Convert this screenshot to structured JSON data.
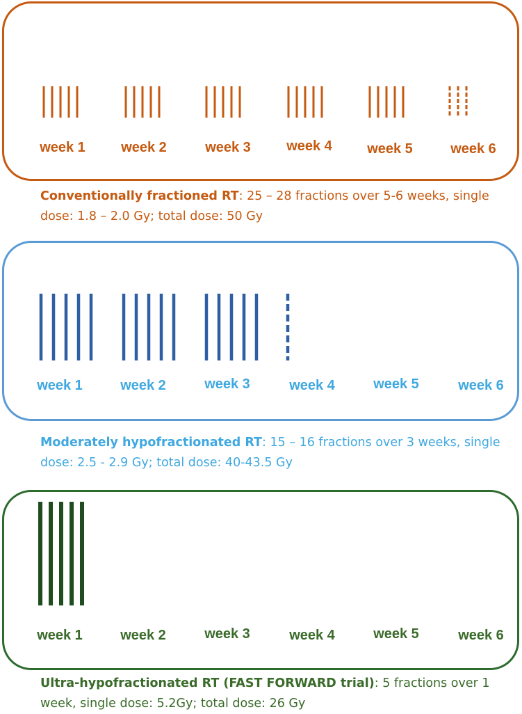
{
  "colors": {
    "conventional": "#c55a11",
    "moderate_line": "#2e5fa3",
    "moderate_text": "#3fa8e0",
    "moderate_border": "#5b9bd5",
    "ultra": "#1f4d1f",
    "ultra_text": "#3a6b2a"
  },
  "panels": [
    {
      "id": "conventional",
      "weeks": [
        "week 1",
        "week 2",
        "week 3",
        "week 4",
        "week 5",
        "week 6"
      ],
      "fractions_per_week": [
        5,
        5,
        5,
        5,
        5,
        3
      ],
      "partial_week_dashed": true,
      "caption_bold": "Conventionally fractioned RT",
      "caption_text": ": 25 – 28 fractions over 5-6 weeks, single dose: 1.8 – 2.0 Gy; total dose: 50 Gy"
    },
    {
      "id": "moderate",
      "weeks": [
        "week 1",
        "week 2",
        "week 3",
        "week 4",
        "week 5",
        "week 6"
      ],
      "fractions_per_week": [
        5,
        5,
        5,
        1,
        0,
        0
      ],
      "partial_week_dashed": true,
      "caption_bold": "Moderately hypofractionated RT",
      "caption_text": ": 15 – 16 fractions over 3 weeks, single dose: 2.5 - 2.9 Gy; total dose: 40-43.5 Gy"
    },
    {
      "id": "ultra",
      "weeks": [
        "week 1",
        "week 2",
        "week 3",
        "week 4",
        "week 5",
        "week 6"
      ],
      "fractions_per_week": [
        5,
        0,
        0,
        0,
        0,
        0
      ],
      "partial_week_dashed": false,
      "caption_bold": "Ultra-hypofractionated RT (FAST FORWARD trial)",
      "caption_text": ": 5 fractions over 1 week, single dose: 5.2Gy; total dose: 26 Gy"
    }
  ]
}
